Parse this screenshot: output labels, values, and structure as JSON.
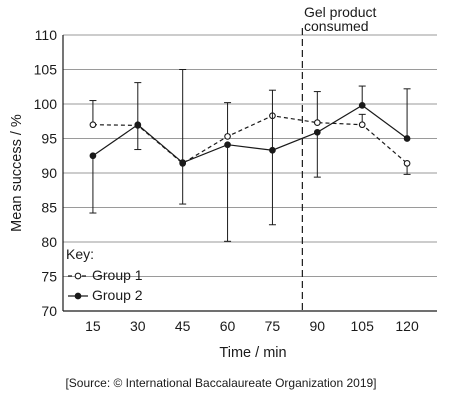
{
  "chart_data": {
    "type": "line",
    "x": [
      15,
      30,
      45,
      60,
      75,
      90,
      105,
      120
    ],
    "xlabel": "Time / min",
    "ylabel": "Mean success / %",
    "xlim": [
      5,
      130
    ],
    "ylim": [
      70,
      110
    ],
    "yticks": [
      70,
      75,
      80,
      85,
      90,
      95,
      100,
      105,
      110
    ],
    "grid": "horizontal",
    "series": [
      {
        "name": "Group 1",
        "style": "dashed",
        "marker": "open-circle",
        "values": [
          97.0,
          96.9,
          91.4,
          95.3,
          98.3,
          97.3,
          97.0,
          91.4
        ],
        "error_upper": [
          100.5,
          96.9,
          91.4,
          100.2,
          98.3,
          101.8,
          98.5,
          91.4
        ],
        "error_lower": [
          97.0,
          96.9,
          91.4,
          95.3,
          98.3,
          97.3,
          97.0,
          89.8
        ]
      },
      {
        "name": "Group 2",
        "style": "solid",
        "marker": "filled-circle",
        "values": [
          92.5,
          97.0,
          91.5,
          94.1,
          93.3,
          95.9,
          99.8,
          95.0
        ],
        "error_upper": [
          92.5,
          103.1,
          105.0,
          94.1,
          102.0,
          95.9,
          102.6,
          102.2
        ],
        "error_lower": [
          84.2,
          93.4,
          85.5,
          80.1,
          82.5,
          89.4,
          99.8,
          95.0
        ]
      }
    ],
    "annotations": [
      {
        "label_lines": [
          "Gel product",
          "consumed"
        ],
        "x": 85,
        "style": "dashed-vertical-line"
      }
    ],
    "legend": {
      "title": "Key:",
      "placement": "bottom-left"
    },
    "source": "[Source: © International Baccalaureate Organization 2019]",
    "colors": {
      "ink": "#1a1a1a",
      "grid": "#9a9a9a"
    }
  }
}
